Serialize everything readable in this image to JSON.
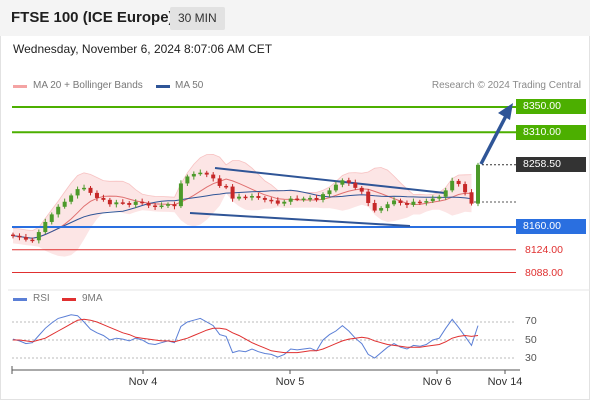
{
  "header": {
    "title": "FTSE 100 (ICE Europe)",
    "timeframe": "30 MIN",
    "datetime": "Wednesday, November 6, 2024 8:07:06 AM CET"
  },
  "legend": {
    "ma20": "MA 20 + Bollinger Bands",
    "ma50": "MA 50",
    "credit": "Research © 2024 Trading Central"
  },
  "colors": {
    "bollinger": "#f4a3a3",
    "ma50": "#2f5597",
    "resistance": "#4caf00",
    "support": "#2a6fe0",
    "target": "#e03030",
    "candle_up": "#4c9a2a",
    "candle_down": "#c62828",
    "rsi": "#5b7fd6",
    "rsi_ma": "#e03030"
  },
  "levels": {
    "r2": "8350.00",
    "r1": "8310.00",
    "last": "8258.50",
    "s1": "8160.00",
    "t1": "8124.00",
    "t2": "8088.00"
  },
  "rsi_panel": {
    "rsi_label": "RSI",
    "ma_label": "9MA",
    "ticks": [
      "70",
      "50",
      "30"
    ]
  },
  "x_axis": {
    "ticks": [
      "Nov 4",
      "Nov 5",
      "Nov 6",
      "Nov 14"
    ]
  },
  "chart_data": {
    "type": "candlestick",
    "price_levels": {
      "resistance": [
        8350.0,
        8310.0
      ],
      "last": 8258.5,
      "support": 8160.0,
      "targets_down": [
        8124.0,
        8088.0
      ]
    },
    "close_series": [
      8146,
      8144,
      8140,
      8139,
      8152,
      8168,
      8180,
      8192,
      8200,
      8210,
      8220,
      8222,
      8214,
      8206,
      8203,
      8196,
      8199,
      8198,
      8195,
      8200,
      8198,
      8194,
      8192,
      8194,
      8196,
      8193,
      8229,
      8240,
      8244,
      8246,
      8243,
      8237,
      8225,
      8224,
      8205,
      8208,
      8207,
      8209,
      8206,
      8203,
      8202,
      8197,
      8200,
      8205,
      8204,
      8205,
      8206,
      8203,
      8212,
      8218,
      8227,
      8234,
      8230,
      8222,
      8216,
      8198,
      8186,
      8190,
      8196,
      8202,
      8198,
      8195,
      8200,
      8199,
      8201,
      8205,
      8208,
      8218,
      8233,
      8228,
      8215,
      8197,
      8258.5
    ],
    "rsi": [
      51,
      49,
      46,
      47,
      55,
      63,
      69,
      74,
      76,
      78,
      77,
      70,
      62,
      58,
      55,
      50,
      52,
      51,
      49,
      52,
      50,
      46,
      45,
      47,
      49,
      47,
      65,
      70,
      72,
      74,
      70,
      66,
      56,
      54,
      36,
      38,
      37,
      40,
      37,
      35,
      34,
      31,
      34,
      40,
      39,
      40,
      41,
      38,
      50,
      56,
      60,
      66,
      60,
      52,
      46,
      34,
      30,
      36,
      42,
      46,
      42,
      40,
      44,
      43,
      45,
      50,
      52,
      63,
      73,
      64,
      54,
      44,
      66
    ],
    "rsi_ma": [
      50,
      50,
      49,
      48,
      50,
      52,
      56,
      60,
      64,
      68,
      72,
      73,
      72,
      70,
      67,
      64,
      61,
      58,
      56,
      53,
      52,
      51,
      50,
      49,
      49,
      48,
      50,
      52,
      55,
      58,
      61,
      63,
      63,
      62,
      58,
      55,
      51,
      47,
      44,
      41,
      38,
      37,
      36,
      36,
      36,
      37,
      38,
      38,
      40,
      43,
      46,
      49,
      51,
      52,
      53,
      52,
      49,
      47,
      45,
      44,
      43,
      42,
      42,
      42,
      43,
      44,
      45,
      48,
      52,
      54,
      55,
      54,
      55
    ],
    "rsi_ylim": [
      20,
      80
    ],
    "xlabel": "",
    "ylabel": ""
  }
}
